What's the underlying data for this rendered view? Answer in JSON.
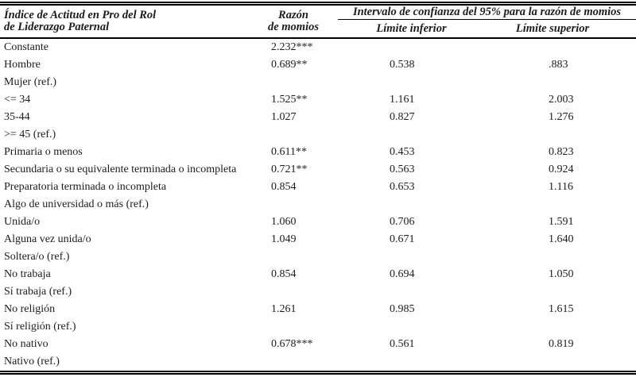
{
  "table": {
    "header": {
      "stub": "Índice de Actitud en Pro del Rol\nde Liderazgo Paternal",
      "odds_ratio": "Razón\nde momios",
      "ci_spanner": "Intervalo de confianza del 95% para la razón de momios",
      "ci_lower": "Límite inferior",
      "ci_upper": "Límite superior"
    },
    "rows": [
      {
        "label": "Constante",
        "or": "2.232***",
        "lower": "",
        "upper": ""
      },
      {
        "label": "Hombre",
        "or": "0.689**",
        "lower": "0.538",
        "upper": ".883"
      },
      {
        "label": "Mujer (ref.)",
        "or": "",
        "lower": "",
        "upper": ""
      },
      {
        "label": "<= 34",
        "or": "1.525**",
        "lower": "1.161",
        "upper": "2.003"
      },
      {
        "label": "35-44",
        "or": "1.027",
        "lower": "0.827",
        "upper": "1.276"
      },
      {
        "label": ">= 45 (ref.)",
        "or": "",
        "lower": "",
        "upper": ""
      },
      {
        "label": "Primaria o menos",
        "or": "0.611**",
        "lower": "0.453",
        "upper": "0.823"
      },
      {
        "label": "Secundaria o su equivalente terminada o incompleta",
        "or": "0.721**",
        "lower": "0.563",
        "upper": "0.924"
      },
      {
        "label": "Preparatoria terminada o incompleta",
        "or": "0.854",
        "lower": "0.653",
        "upper": "1.116"
      },
      {
        "label": "Algo de universidad o más (ref.)",
        "or": "",
        "lower": "",
        "upper": ""
      },
      {
        "label": "Unida/o",
        "or": "1.060",
        "lower": "0.706",
        "upper": "1.591"
      },
      {
        "label": "Alguna vez unida/o",
        "or": "1.049",
        "lower": "0.671",
        "upper": "1.640"
      },
      {
        "label": "Soltera/o (ref.)",
        "or": "",
        "lower": "",
        "upper": ""
      },
      {
        "label": "No trabaja",
        "or": "0.854",
        "lower": "0.694",
        "upper": "1.050"
      },
      {
        "label": "Sí trabaja (ref.)",
        "or": "",
        "lower": "",
        "upper": ""
      },
      {
        "label": "No religión",
        "or": "1.261",
        "lower": "0.985",
        "upper": "1.615"
      },
      {
        "label": "Sí religión (ref.)",
        "or": "",
        "lower": "",
        "upper": ""
      },
      {
        "label": "No nativo",
        "or": "0.678***",
        "lower": "0.561",
        "upper": "0.819"
      },
      {
        "label": "Nativo (ref.)",
        "or": "",
        "lower": "",
        "upper": ""
      }
    ]
  }
}
